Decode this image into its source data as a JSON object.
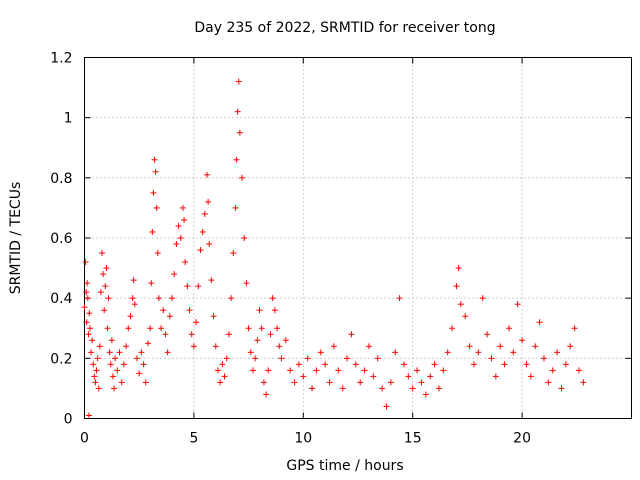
{
  "chart_data": {
    "type": "scatter",
    "title": "Day 235 of 2022, SRMTID for receiver tong",
    "xlabel": "GPS time / hours",
    "ylabel": "SRMTID / TECUs",
    "xlim": [
      0,
      25
    ],
    "ylim": [
      0,
      1.2
    ],
    "xticks": [
      0,
      5,
      10,
      15,
      20
    ],
    "xtick_labels": [
      "0",
      "5",
      "10",
      "15",
      "20"
    ],
    "yticks": [
      0,
      0.2,
      0.4,
      0.6,
      0.8,
      1.0,
      1.2
    ],
    "ytick_labels": [
      "0",
      "0.2",
      "0.4",
      "0.6",
      "0.8",
      "1",
      "1.2"
    ],
    "grid": true,
    "marker": "+",
    "color": "#ff0000",
    "series": [
      {
        "name": "SRMTID",
        "points": [
          [
            0.0,
            0.37
          ],
          [
            0.05,
            0.52
          ],
          [
            0.08,
            0.42
          ],
          [
            0.1,
            0.32
          ],
          [
            0.12,
            0.45
          ],
          [
            0.15,
            0.4
          ],
          [
            0.18,
            0.28
          ],
          [
            0.2,
            0.01
          ],
          [
            0.22,
            0.35
          ],
          [
            0.25,
            0.3
          ],
          [
            0.3,
            0.22
          ],
          [
            0.35,
            0.26
          ],
          [
            0.4,
            0.18
          ],
          [
            0.45,
            0.14
          ],
          [
            0.5,
            0.12
          ],
          [
            0.55,
            0.16
          ],
          [
            0.6,
            0.2
          ],
          [
            0.65,
            0.1
          ],
          [
            0.7,
            0.24
          ],
          [
            0.75,
            0.42
          ],
          [
            0.8,
            0.55
          ],
          [
            0.85,
            0.48
          ],
          [
            0.9,
            0.36
          ],
          [
            0.95,
            0.44
          ],
          [
            1.0,
            0.5
          ],
          [
            1.05,
            0.3
          ],
          [
            1.1,
            0.4
          ],
          [
            1.15,
            0.22
          ],
          [
            1.2,
            0.18
          ],
          [
            1.25,
            0.26
          ],
          [
            1.3,
            0.14
          ],
          [
            1.35,
            0.1
          ],
          [
            1.4,
            0.2
          ],
          [
            1.5,
            0.16
          ],
          [
            1.6,
            0.22
          ],
          [
            1.7,
            0.12
          ],
          [
            1.8,
            0.18
          ],
          [
            1.9,
            0.24
          ],
          [
            2.0,
            0.3
          ],
          [
            2.1,
            0.34
          ],
          [
            2.2,
            0.4
          ],
          [
            2.25,
            0.46
          ],
          [
            2.3,
            0.38
          ],
          [
            2.4,
            0.2
          ],
          [
            2.5,
            0.15
          ],
          [
            2.6,
            0.22
          ],
          [
            2.7,
            0.18
          ],
          [
            2.8,
            0.12
          ],
          [
            2.9,
            0.25
          ],
          [
            3.0,
            0.3
          ],
          [
            3.05,
            0.45
          ],
          [
            3.1,
            0.62
          ],
          [
            3.15,
            0.75
          ],
          [
            3.2,
            0.86
          ],
          [
            3.25,
            0.82
          ],
          [
            3.3,
            0.7
          ],
          [
            3.35,
            0.55
          ],
          [
            3.4,
            0.4
          ],
          [
            3.5,
            0.3
          ],
          [
            3.6,
            0.36
          ],
          [
            3.7,
            0.28
          ],
          [
            3.8,
            0.22
          ],
          [
            3.9,
            0.34
          ],
          [
            4.0,
            0.4
          ],
          [
            4.1,
            0.48
          ],
          [
            4.2,
            0.58
          ],
          [
            4.3,
            0.64
          ],
          [
            4.4,
            0.6
          ],
          [
            4.5,
            0.7
          ],
          [
            4.55,
            0.66
          ],
          [
            4.6,
            0.52
          ],
          [
            4.7,
            0.44
          ],
          [
            4.8,
            0.36
          ],
          [
            4.9,
            0.28
          ],
          [
            5.0,
            0.24
          ],
          [
            5.1,
            0.32
          ],
          [
            5.2,
            0.44
          ],
          [
            5.3,
            0.56
          ],
          [
            5.4,
            0.62
          ],
          [
            5.5,
            0.68
          ],
          [
            5.6,
            0.81
          ],
          [
            5.65,
            0.72
          ],
          [
            5.7,
            0.58
          ],
          [
            5.8,
            0.46
          ],
          [
            5.9,
            0.34
          ],
          [
            6.0,
            0.24
          ],
          [
            6.1,
            0.16
          ],
          [
            6.2,
            0.12
          ],
          [
            6.3,
            0.18
          ],
          [
            6.4,
            0.14
          ],
          [
            6.5,
            0.2
          ],
          [
            6.6,
            0.28
          ],
          [
            6.7,
            0.4
          ],
          [
            6.8,
            0.55
          ],
          [
            6.9,
            0.7
          ],
          [
            6.95,
            0.86
          ],
          [
            7.0,
            1.02
          ],
          [
            7.05,
            1.12
          ],
          [
            7.1,
            0.95
          ],
          [
            7.2,
            0.8
          ],
          [
            7.3,
            0.6
          ],
          [
            7.4,
            0.45
          ],
          [
            7.5,
            0.3
          ],
          [
            7.6,
            0.22
          ],
          [
            7.7,
            0.16
          ],
          [
            7.8,
            0.2
          ],
          [
            7.9,
            0.26
          ],
          [
            8.0,
            0.36
          ],
          [
            8.1,
            0.3
          ],
          [
            8.2,
            0.12
          ],
          [
            8.3,
            0.08
          ],
          [
            8.4,
            0.16
          ],
          [
            8.5,
            0.28
          ],
          [
            8.6,
            0.4
          ],
          [
            8.7,
            0.36
          ],
          [
            8.8,
            0.3
          ],
          [
            8.9,
            0.24
          ],
          [
            9.0,
            0.2
          ],
          [
            9.2,
            0.26
          ],
          [
            9.4,
            0.16
          ],
          [
            9.6,
            0.12
          ],
          [
            9.8,
            0.18
          ],
          [
            10.0,
            0.14
          ],
          [
            10.2,
            0.2
          ],
          [
            10.4,
            0.1
          ],
          [
            10.6,
            0.16
          ],
          [
            10.8,
            0.22
          ],
          [
            11.0,
            0.18
          ],
          [
            11.2,
            0.12
          ],
          [
            11.4,
            0.24
          ],
          [
            11.6,
            0.16
          ],
          [
            11.8,
            0.1
          ],
          [
            12.0,
            0.2
          ],
          [
            12.2,
            0.28
          ],
          [
            12.4,
            0.18
          ],
          [
            12.6,
            0.12
          ],
          [
            12.8,
            0.16
          ],
          [
            13.0,
            0.24
          ],
          [
            13.2,
            0.14
          ],
          [
            13.4,
            0.2
          ],
          [
            13.6,
            0.1
          ],
          [
            13.8,
            0.04
          ],
          [
            14.0,
            0.12
          ],
          [
            14.2,
            0.22
          ],
          [
            14.4,
            0.4
          ],
          [
            14.6,
            0.18
          ],
          [
            14.8,
            0.14
          ],
          [
            15.0,
            0.1
          ],
          [
            15.2,
            0.16
          ],
          [
            15.4,
            0.12
          ],
          [
            15.6,
            0.08
          ],
          [
            15.8,
            0.14
          ],
          [
            16.0,
            0.18
          ],
          [
            16.2,
            0.1
          ],
          [
            16.4,
            0.16
          ],
          [
            16.6,
            0.22
          ],
          [
            16.8,
            0.3
          ],
          [
            17.0,
            0.44
          ],
          [
            17.1,
            0.5
          ],
          [
            17.2,
            0.38
          ],
          [
            17.4,
            0.34
          ],
          [
            17.6,
            0.24
          ],
          [
            17.8,
            0.18
          ],
          [
            18.0,
            0.22
          ],
          [
            18.2,
            0.4
          ],
          [
            18.4,
            0.28
          ],
          [
            18.6,
            0.2
          ],
          [
            18.8,
            0.14
          ],
          [
            19.0,
            0.24
          ],
          [
            19.2,
            0.18
          ],
          [
            19.4,
            0.3
          ],
          [
            19.6,
            0.22
          ],
          [
            19.8,
            0.38
          ],
          [
            20.0,
            0.26
          ],
          [
            20.2,
            0.18
          ],
          [
            20.4,
            0.14
          ],
          [
            20.6,
            0.24
          ],
          [
            20.8,
            0.32
          ],
          [
            21.0,
            0.2
          ],
          [
            21.2,
            0.12
          ],
          [
            21.4,
            0.16
          ],
          [
            21.6,
            0.22
          ],
          [
            21.8,
            0.1
          ],
          [
            22.0,
            0.18
          ],
          [
            22.2,
            0.24
          ],
          [
            22.4,
            0.3
          ],
          [
            22.6,
            0.16
          ],
          [
            22.8,
            0.12
          ]
        ]
      }
    ]
  }
}
